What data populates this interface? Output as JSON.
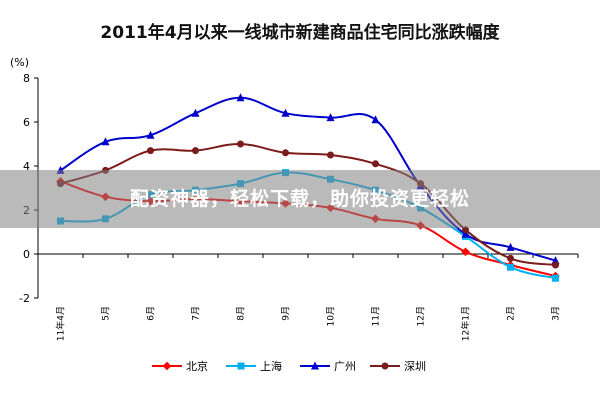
{
  "chart_data": {
    "type": "line",
    "title": "2011年4月以来一线城市新建商品住宅同比涨跌幅度",
    "ylabel": "(%)",
    "xlabel": "",
    "ylim": [
      -2,
      8
    ],
    "yticks": [
      "8",
      "6",
      "4",
      "2",
      "0",
      "-2"
    ],
    "ytick_values": [
      8,
      6,
      4,
      2,
      0,
      -2
    ],
    "categories": [
      "11年4月",
      "5月",
      "6月",
      "7月",
      "8月",
      "9月",
      "10月",
      "11月",
      "12月",
      "12年1月",
      "2月",
      "3月"
    ],
    "series": [
      {
        "name": "北京",
        "color": "#ff0000",
        "marker": "diamond",
        "values": [
          3.3,
          2.6,
          2.4,
          2.5,
          2.4,
          2.3,
          2.1,
          1.6,
          1.3,
          0.1,
          -0.5,
          -1.0
        ]
      },
      {
        "name": "上海",
        "color": "#00b0f0",
        "marker": "square",
        "values": [
          1.5,
          1.6,
          2.7,
          2.9,
          3.2,
          3.7,
          3.4,
          2.9,
          2.1,
          0.8,
          -0.6,
          -1.1
        ]
      },
      {
        "name": "广州",
        "color": "#0000cc",
        "marker": "triangle",
        "values": [
          3.8,
          5.1,
          5.4,
          6.4,
          7.1,
          6.4,
          6.2,
          6.1,
          3.1,
          0.9,
          0.3,
          -0.3
        ]
      },
      {
        "name": "深圳",
        "color": "#7b1b1b",
        "marker": "circle",
        "values": [
          3.2,
          3.8,
          4.7,
          4.7,
          5.0,
          4.6,
          4.5,
          4.1,
          3.2,
          1.1,
          -0.2,
          -0.5
        ]
      }
    ]
  },
  "watermark": "配资神器，轻松下载，助你投资更轻松"
}
